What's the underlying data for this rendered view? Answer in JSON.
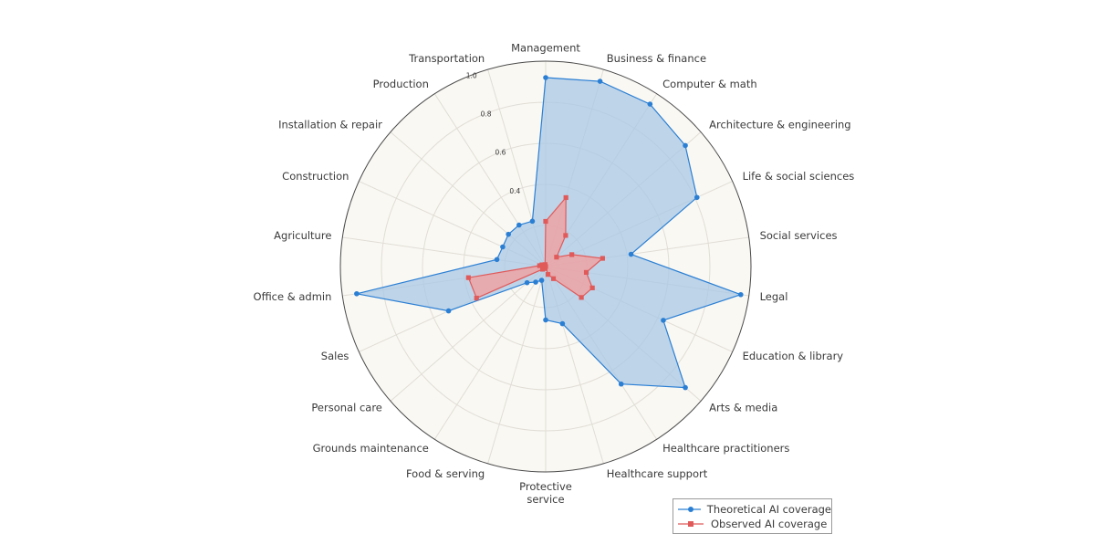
{
  "chart_data": {
    "type": "radar",
    "categories": [
      "Management",
      "Business & finance",
      "Computer & math",
      "Architecture & engineering",
      "Life & social sciences",
      "Social services",
      "Legal",
      "Education & library",
      "Arts & media",
      "Healthcare practitioners",
      "Healthcare support",
      "Protective service",
      "Food & serving",
      "Grounds maintenance",
      "Personal care",
      "Sales",
      "Office & admin",
      "Agriculture",
      "Construction",
      "Installation & repair",
      "Production",
      "Transportation"
    ],
    "radial_ticks": [
      "0.4",
      "0.6",
      "0.8",
      "1.0"
    ],
    "rlim": [
      0,
      1.0
    ],
    "series": [
      {
        "name": "Theoretical AI coverage",
        "color": "#2a7fd4",
        "fill": "#a9c8e6",
        "marker": "circle",
        "values": [
          0.92,
          0.94,
          0.94,
          0.9,
          0.81,
          0.42,
          0.96,
          0.63,
          0.9,
          0.68,
          0.29,
          0.26,
          0.07,
          0.09,
          0.12,
          0.52,
          0.93,
          0.24,
          0.23,
          0.24,
          0.24,
          0.23
        ]
      },
      {
        "name": "Observed AI coverage",
        "color": "#e05a5a",
        "fill": "#f0a0a0",
        "marker": "square",
        "values": [
          0.22,
          0.35,
          0.18,
          0.07,
          0.14,
          0.28,
          0.2,
          0.25,
          0.23,
          0.07,
          0.04,
          0.0,
          0.01,
          0.01,
          0.02,
          0.37,
          0.38,
          0.03,
          0.02,
          0.01,
          0.01,
          0.01
        ]
      }
    ],
    "legend": "bottom-right",
    "grid": true
  }
}
